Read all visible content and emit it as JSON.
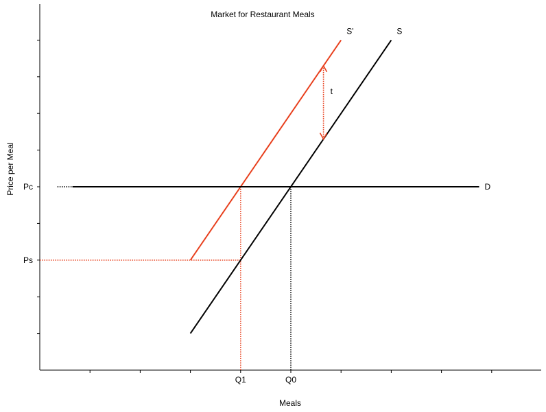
{
  "chart_data": {
    "type": "line",
    "title": "Market for Restaurant Meals",
    "xlabel": "Meals",
    "ylabel": "Price per Meal",
    "xlim": [
      0,
      10
    ],
    "ylim": [
      0,
      10
    ],
    "x_ticks": [
      1,
      2,
      3,
      4,
      5,
      6,
      7,
      8,
      9
    ],
    "y_ticks": [
      1,
      2,
      3,
      4,
      5,
      6,
      7,
      8,
      9
    ],
    "x_tick_labels": [
      {
        "value": 4,
        "label": "Q1"
      },
      {
        "value": 5,
        "label": "Q0"
      }
    ],
    "y_tick_labels": [
      {
        "value": 5,
        "label": "Pc"
      },
      {
        "value": 3,
        "label": "Ps"
      }
    ],
    "series": [
      {
        "name": "S",
        "color": "#000000",
        "points": [
          [
            3,
            1
          ],
          [
            7,
            9
          ]
        ]
      },
      {
        "name": "S'",
        "color": "#e8411f",
        "points": [
          [
            3,
            3
          ],
          [
            6,
            9
          ]
        ]
      },
      {
        "name": "D",
        "color": "#000000",
        "points": [
          [
            0.65,
            5
          ],
          [
            8.75,
            5
          ]
        ]
      }
    ],
    "reference_lines": [
      {
        "color": "#000000",
        "points": [
          [
            0.35,
            5
          ],
          [
            0.65,
            5
          ]
        ]
      },
      {
        "color": "#e8411f",
        "points": [
          [
            0,
            3
          ],
          [
            4,
            3
          ]
        ]
      },
      {
        "color": "#e8411f",
        "points": [
          [
            4,
            0
          ],
          [
            4,
            5
          ]
        ]
      },
      {
        "color": "#000000",
        "points": [
          [
            5,
            0
          ],
          [
            5,
            5
          ]
        ]
      }
    ],
    "annotations": [
      {
        "text": "t",
        "type": "double-arrow",
        "color": "#e8411f",
        "from": [
          5.65,
          6.3
        ],
        "to": [
          5.65,
          8.3
        ]
      }
    ]
  }
}
